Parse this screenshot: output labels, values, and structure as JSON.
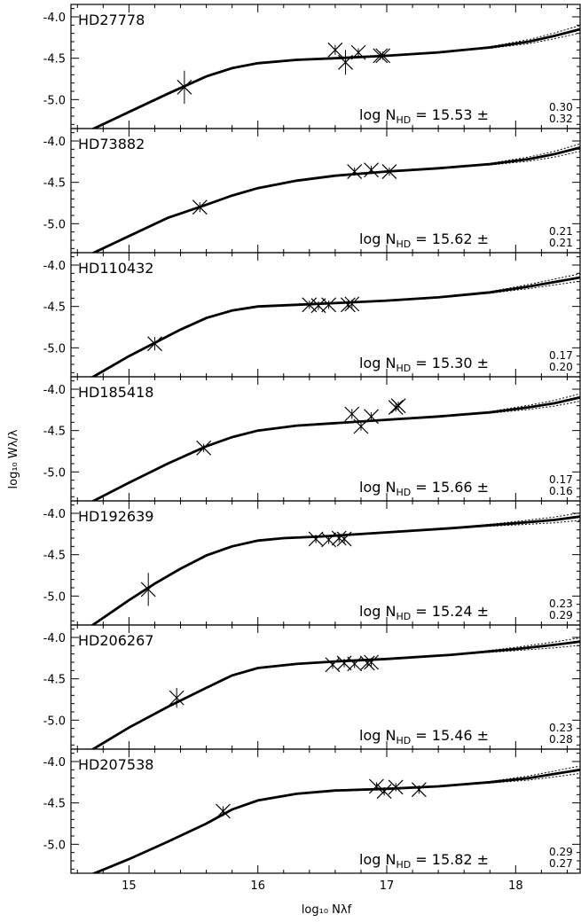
{
  "chart_data": {
    "type": "scatter",
    "xlabel": "log₁₀ Nλf",
    "ylabel": "log₁₀ Wλ/λ",
    "xlim": [
      14.55,
      18.5
    ],
    "ylim": [
      -5.35,
      -3.85
    ],
    "x_ticks": [
      "15",
      "16",
      "17",
      "18"
    ],
    "y_ticks": [
      "-4.0",
      "-4.5",
      "-5.0"
    ],
    "shared_x_axis": true,
    "grid": false,
    "legend": "none",
    "panels": [
      {
        "star": "HD27778",
        "annotation": {
          "prefix": "log N",
          "sub": "HD",
          "equals": "=",
          "value": "15.53",
          "pm": "±",
          "err_plus": "0.30",
          "err_minus": "0.32"
        },
        "points": [
          {
            "x": 15.43,
            "y": -4.85,
            "yerr": 0.2
          },
          {
            "x": 16.6,
            "y": -4.4,
            "yerr": 0.06
          },
          {
            "x": 16.68,
            "y": -4.55,
            "yerr": 0.15
          },
          {
            "x": 16.78,
            "y": -4.43,
            "yerr": 0.05
          },
          {
            "x": 16.95,
            "y": -4.47,
            "yerr": 0.05
          },
          {
            "x": 16.97,
            "y": -4.47,
            "yerr": 0.05
          }
        ],
        "curve": {
          "x": [
            14.7,
            15.0,
            15.3,
            15.6,
            15.8,
            16.0,
            16.3,
            16.6,
            17.0,
            17.4,
            17.8,
            18.1,
            18.3,
            18.5
          ],
          "y": [
            -5.37,
            -5.15,
            -4.93,
            -4.72,
            -4.62,
            -4.56,
            -4.52,
            -4.5,
            -4.47,
            -4.43,
            -4.37,
            -4.3,
            -4.23,
            -4.15
          ]
        }
      },
      {
        "star": "HD73882",
        "annotation": {
          "prefix": "log N",
          "sub": "HD",
          "equals": "=",
          "value": "15.62",
          "pm": "±",
          "err_plus": "0.21",
          "err_minus": "0.21"
        },
        "points": [
          {
            "x": 15.55,
            "y": -4.8,
            "yerr": 0.06
          },
          {
            "x": 16.75,
            "y": -4.37,
            "yerr": 0.05
          },
          {
            "x": 16.88,
            "y": -4.35,
            "yerr": 0.05
          },
          {
            "x": 17.02,
            "y": -4.37,
            "yerr": 0.05
          }
        ],
        "curve": {
          "x": [
            14.7,
            15.0,
            15.3,
            15.6,
            15.8,
            16.0,
            16.3,
            16.6,
            17.0,
            17.4,
            17.8,
            18.1,
            18.3,
            18.5
          ],
          "y": [
            -5.37,
            -5.15,
            -4.93,
            -4.77,
            -4.66,
            -4.57,
            -4.48,
            -4.42,
            -4.37,
            -4.33,
            -4.28,
            -4.22,
            -4.16,
            -4.08
          ]
        }
      },
      {
        "star": "HD110432",
        "annotation": {
          "prefix": "log N",
          "sub": "HD",
          "equals": "=",
          "value": "15.30",
          "pm": "±",
          "err_plus": "0.17",
          "err_minus": "0.20"
        },
        "points": [
          {
            "x": 15.2,
            "y": -4.95,
            "yerr": 0.08
          },
          {
            "x": 16.4,
            "y": -4.48,
            "yerr": 0.05
          },
          {
            "x": 16.47,
            "y": -4.49,
            "yerr": 0.05
          },
          {
            "x": 16.55,
            "y": -4.48,
            "yerr": 0.05
          },
          {
            "x": 16.7,
            "y": -4.48,
            "yerr": 0.05
          },
          {
            "x": 16.73,
            "y": -4.47,
            "yerr": 0.05
          }
        ],
        "curve": {
          "x": [
            14.7,
            15.0,
            15.2,
            15.4,
            15.6,
            15.8,
            16.0,
            16.3,
            16.6,
            17.0,
            17.4,
            17.8,
            18.1,
            18.5
          ],
          "y": [
            -5.37,
            -5.1,
            -4.94,
            -4.78,
            -4.64,
            -4.55,
            -4.5,
            -4.48,
            -4.46,
            -4.43,
            -4.39,
            -4.33,
            -4.26,
            -4.15
          ]
        }
      },
      {
        "star": "HD185418",
        "annotation": {
          "prefix": "log N",
          "sub": "HD",
          "equals": "=",
          "value": "15.66",
          "pm": "±",
          "err_plus": "0.17",
          "err_minus": "0.16"
        },
        "points": [
          {
            "x": 15.58,
            "y": -4.71,
            "yerr": 0.05
          },
          {
            "x": 16.73,
            "y": -4.3,
            "yerr": 0.06
          },
          {
            "x": 16.8,
            "y": -4.45,
            "yerr": 0.05
          },
          {
            "x": 16.88,
            "y": -4.33,
            "yerr": 0.05
          },
          {
            "x": 17.07,
            "y": -4.22,
            "yerr": 0.05
          },
          {
            "x": 17.09,
            "y": -4.2,
            "yerr": 0.05
          }
        ],
        "curve": {
          "x": [
            14.7,
            15.0,
            15.3,
            15.6,
            15.8,
            16.0,
            16.3,
            16.6,
            17.0,
            17.4,
            17.8,
            18.1,
            18.3,
            18.5
          ],
          "y": [
            -5.37,
            -5.13,
            -4.9,
            -4.69,
            -4.58,
            -4.5,
            -4.44,
            -4.41,
            -4.37,
            -4.33,
            -4.28,
            -4.22,
            -4.17,
            -4.1
          ]
        }
      },
      {
        "star": "HD192639",
        "annotation": {
          "prefix": "log N",
          "sub": "HD",
          "equals": "=",
          "value": "15.24",
          "pm": "±",
          "err_plus": "0.23",
          "err_minus": "0.29"
        },
        "points": [
          {
            "x": 15.15,
            "y": -4.92,
            "yerr": 0.2
          },
          {
            "x": 16.45,
            "y": -4.31,
            "yerr": 0.05
          },
          {
            "x": 16.55,
            "y": -4.32,
            "yerr": 0.05
          },
          {
            "x": 16.63,
            "y": -4.3,
            "yerr": 0.05
          },
          {
            "x": 16.67,
            "y": -4.31,
            "yerr": 0.05
          }
        ],
        "curve": {
          "x": [
            14.7,
            15.0,
            15.2,
            15.4,
            15.6,
            15.8,
            16.0,
            16.2,
            16.5,
            17.0,
            17.5,
            18.0,
            18.3,
            18.5
          ],
          "y": [
            -5.37,
            -5.05,
            -4.85,
            -4.67,
            -4.51,
            -4.4,
            -4.33,
            -4.3,
            -4.28,
            -4.23,
            -4.18,
            -4.12,
            -4.08,
            -4.04
          ]
        }
      },
      {
        "star": "HD206267",
        "annotation": {
          "prefix": "log N",
          "sub": "HD",
          "equals": "=",
          "value": "15.46",
          "pm": "±",
          "err_plus": "0.23",
          "err_minus": "0.28"
        },
        "points": [
          {
            "x": 15.37,
            "y": -4.73,
            "yerr": 0.12
          },
          {
            "x": 16.58,
            "y": -4.33,
            "yerr": 0.05
          },
          {
            "x": 16.67,
            "y": -4.31,
            "yerr": 0.05
          },
          {
            "x": 16.75,
            "y": -4.32,
            "yerr": 0.05
          },
          {
            "x": 16.85,
            "y": -4.31,
            "yerr": 0.05
          },
          {
            "x": 16.88,
            "y": -4.3,
            "yerr": 0.05
          }
        ],
        "curve": {
          "x": [
            14.7,
            15.0,
            15.3,
            15.6,
            15.8,
            16.0,
            16.3,
            16.6,
            17.0,
            17.5,
            18.0,
            18.3,
            18.5
          ],
          "y": [
            -5.37,
            -5.09,
            -4.84,
            -4.61,
            -4.46,
            -4.37,
            -4.32,
            -4.29,
            -4.26,
            -4.21,
            -4.14,
            -4.09,
            -4.05
          ]
        }
      },
      {
        "star": "HD207538",
        "annotation": {
          "prefix": "log N",
          "sub": "HD",
          "equals": "=",
          "value": "15.82",
          "pm": "±",
          "err_plus": "0.29",
          "err_minus": "0.27"
        },
        "points": [
          {
            "x": 15.73,
            "y": -4.6,
            "yerr": 0.06
          },
          {
            "x": 16.92,
            "y": -4.3,
            "yerr": 0.05
          },
          {
            "x": 16.98,
            "y": -4.36,
            "yerr": 0.05
          },
          {
            "x": 17.07,
            "y": -4.31,
            "yerr": 0.05
          },
          {
            "x": 17.25,
            "y": -4.34,
            "yerr": 0.05
          }
        ],
        "curve": {
          "x": [
            14.7,
            15.0,
            15.3,
            15.6,
            15.8,
            16.0,
            16.3,
            16.6,
            17.0,
            17.4,
            17.8,
            18.1,
            18.3,
            18.5
          ],
          "y": [
            -5.37,
            -5.18,
            -4.97,
            -4.75,
            -4.58,
            -4.47,
            -4.39,
            -4.35,
            -4.33,
            -4.3,
            -4.25,
            -4.2,
            -4.15,
            -4.1
          ]
        }
      }
    ]
  }
}
